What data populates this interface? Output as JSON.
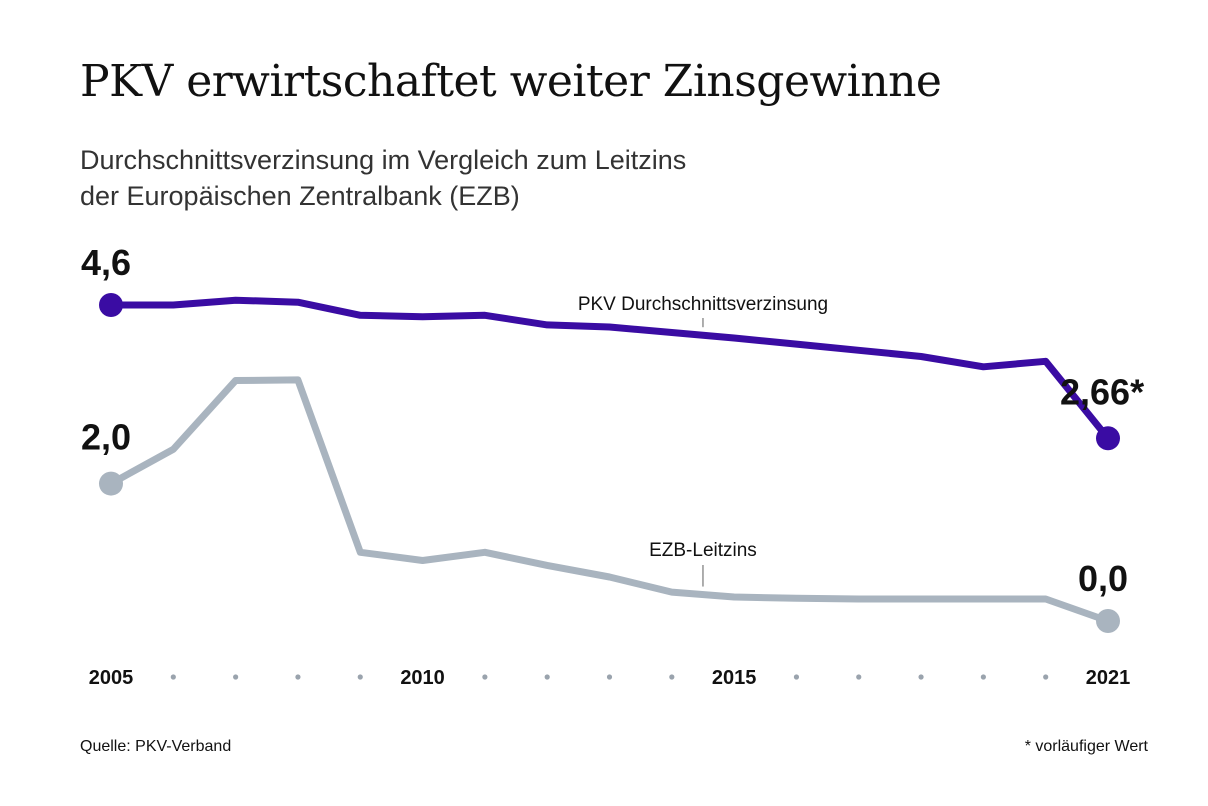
{
  "chart_data": {
    "type": "line",
    "title": "PKV erwirtschaftet weiter Zinsgewinne",
    "subtitle_line1": "Durchschnittsverzinsung im Vergleich zum Leitzins",
    "subtitle_line2": "der Europäischen Zentralbank (EZB)",
    "x": [
      2005,
      2006,
      2007,
      2008,
      2009,
      2010,
      2011,
      2012,
      2013,
      2014,
      2015,
      2016,
      2017,
      2018,
      2019,
      2020,
      2021
    ],
    "x_tick_labels": {
      "2005": "2005",
      "2010": "2010",
      "2015": "2015",
      "2021": "2021"
    },
    "ylim": [
      0,
      5
    ],
    "series": [
      {
        "name": "PKV Durchschnittsverzinsung",
        "color": "#3a0ca3",
        "values": [
          4.6,
          4.6,
          4.67,
          4.64,
          4.45,
          4.43,
          4.45,
          4.31,
          4.28,
          4.2,
          4.12,
          4.03,
          3.94,
          3.85,
          3.7,
          3.78,
          2.66
        ],
        "start_label": "4,6",
        "end_label": "2,66*"
      },
      {
        "name": "EZB-Leitzins",
        "color": "#a9b4bf",
        "values": [
          2.0,
          2.5,
          3.5,
          3.51,
          1.0,
          0.88,
          1.0,
          0.81,
          0.64,
          0.42,
          0.35,
          0.33,
          0.32,
          0.32,
          0.32,
          0.32,
          0.0
        ],
        "start_label": "2,0",
        "end_label": "0,0"
      }
    ]
  },
  "source": "Quelle: PKV-Verband",
  "footnote": "* vorläufiger Wert"
}
